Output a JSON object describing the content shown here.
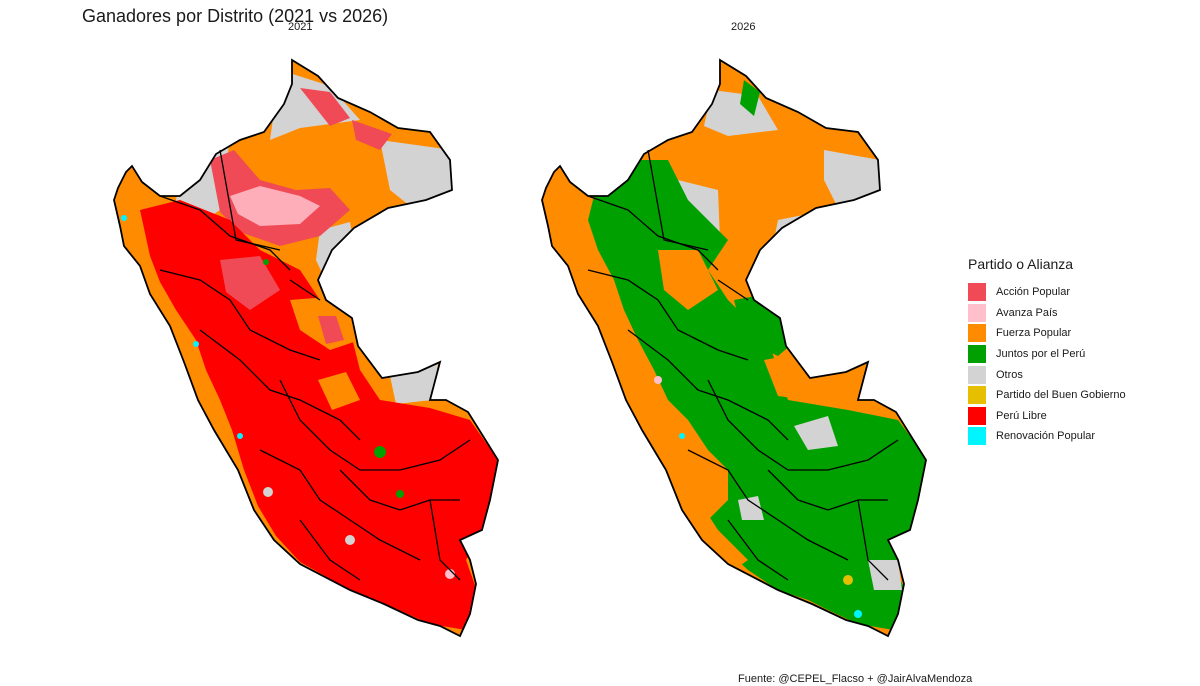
{
  "title": "Ganadores por Distrito (2021 vs 2026)",
  "panels": [
    {
      "label": "2021",
      "primary": "Perú Libre",
      "secondary": "Fuerza Popular",
      "third": "Acción Popular"
    },
    {
      "label": "2026",
      "primary": "Juntos por el Perú",
      "secondary": "Fuerza Popular",
      "third": "Otros"
    }
  ],
  "legend": {
    "title": "Partido o Alianza",
    "items": [
      {
        "label": "Acción Popular",
        "color": "#ef4a55"
      },
      {
        "label": "Avanza País",
        "color": "#ffc0cb"
      },
      {
        "label": "Fuerza Popular",
        "color": "#ff8c00"
      },
      {
        "label": "Juntos por el Perú",
        "color": "#00a000"
      },
      {
        "label": "Otros",
        "color": "#d3d3d3"
      },
      {
        "label": "Partido del Buen Gobierno",
        "color": "#e6c000"
      },
      {
        "label": "Perú Libre",
        "color": "#ff0000"
      },
      {
        "label": "Renovación Popular",
        "color": "#00f5ff"
      }
    ]
  },
  "caption": "Fuente: @CEPEL_Flacso + @JairAlvaMendoza"
}
